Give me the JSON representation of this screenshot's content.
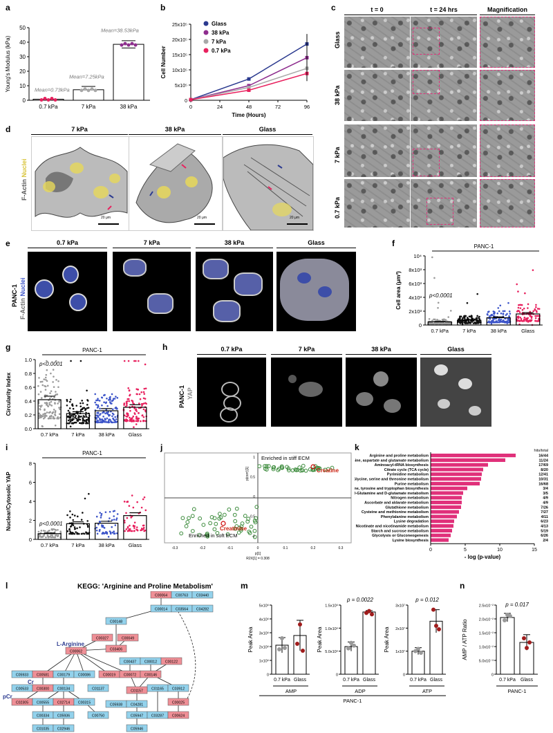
{
  "panel_labels": {
    "a": "a",
    "b": "b",
    "c": "c",
    "d": "d",
    "e": "e",
    "f": "f",
    "g": "g",
    "h": "h",
    "i": "i",
    "j": "j",
    "k": "k",
    "l": "l",
    "m": "m",
    "n": "n"
  },
  "colors": {
    "pink": "#e0307a",
    "navy": "#2b3a8f",
    "purple": "#8e2d8e",
    "grey": "#a8a8a8",
    "blue": "#3d55c9",
    "red": "#e8215e",
    "k_bar": "#e0307a",
    "kegg_blue": "#93d2ec",
    "kegg_red": "#ef8f96"
  },
  "panel_a": {
    "ylabel": "Young's Modulus (kPa)",
    "yticks": [
      "0",
      "10",
      "20",
      "30",
      "40",
      "50"
    ],
    "categories": [
      "0.7 kPa",
      "7 kPa",
      "38 kPa"
    ],
    "annotations": [
      "Mean=0.73kPa",
      "Mean=7.25kPa",
      "Mean=38.53kPa"
    ]
  },
  "panel_b": {
    "ylabel": "Cell Number",
    "xlabel": "Time (Hours)",
    "yticks": [
      "0",
      "5x10⁵",
      "10x10⁵",
      "15x10⁵",
      "20x10⁵",
      "25x10⁵"
    ],
    "xticks": [
      "0",
      "24",
      "48",
      "72",
      "96"
    ],
    "legend": [
      "Glass",
      "38 kPa",
      "7 kPa",
      "0.7 kPa"
    ]
  },
  "panel_c": {
    "col_headers": [
      "t = 0",
      "t = 24 hrs",
      "Magnification"
    ],
    "row_labels": [
      "Glass",
      "38 kPa",
      "7 kPa",
      "0.7 kPa"
    ]
  },
  "panel_d": {
    "col_headers": [
      "7 kPa",
      "38 kPa",
      "Glass"
    ],
    "side_label_1": "F-Actin",
    "side_label_2": "Nuclei",
    "scale": [
      "20 μm",
      "20 μm",
      "20 μm"
    ]
  },
  "panel_e": {
    "col_headers": [
      "0.7 kPa",
      "7 kPa",
      "38 kPa",
      "Glass"
    ],
    "side_label_main": "PANC-1",
    "side_label_1": "F-Actin",
    "side_label_2": "Nuclei"
  },
  "panel_f": {
    "title": "PANC-1",
    "ylabel": "Cell area (μm²)",
    "yticks": [
      "0",
      "2x10³",
      "4x10³",
      "6x10³",
      "8x10³",
      "10⁴"
    ],
    "categories": [
      "0.7 kPa",
      "7 kPa",
      "38 kPa",
      "Glass"
    ],
    "pval": "p<0.0001"
  },
  "panel_g": {
    "title": "PANC-1",
    "ylabel": "Circularity Index",
    "yticks": [
      "0.0",
      "0.2",
      "0.4",
      "0.6",
      "0.8",
      "1.0"
    ],
    "categories": [
      "0.7 kPa",
      "7 kPa",
      "38 kPa",
      "Glass"
    ],
    "pval": "p<0.0001"
  },
  "panel_h": {
    "col_headers": [
      "0.7 kPa",
      "7 kPa",
      "38 kPa",
      "Glass"
    ],
    "side_label_main": "PANC-1",
    "side_label_1": "YAP"
  },
  "panel_i": {
    "title": "PANC-1",
    "ylabel": "Nuclear/Cytosolic YAP",
    "yticks": [
      "0",
      "2",
      "4",
      "6",
      "8"
    ],
    "categories": [
      "0.7 kPa",
      "7 kPa",
      "38 kPa",
      "Glass"
    ],
    "pval": "p<0.0001"
  },
  "panel_j": {
    "top_label": "Enriched in stiff ECM",
    "bottom_label": "Enriched in soft ECM",
    "creatine": "Creatine",
    "creatinine": "Creatinine",
    "ylabel": "p(corr)[1]",
    "xlabel": "p[1]",
    "xlabel2": "R2X[1] = 0.308",
    "xticks": [
      "-0.3",
      "-0.2",
      "-0.1",
      "0",
      "0.1",
      "0.2",
      "0.3"
    ],
    "yticks": [
      "1",
      "0.5",
      "0",
      "-0.5",
      "-1"
    ]
  },
  "panel_k": {
    "hits_header": "hits/total",
    "xlabel": "- log (p-value)",
    "xticks": [
      "0",
      "5",
      "10",
      "15"
    ],
    "pathways": [
      {
        "name": "Arginine and proline metabolism",
        "hits": "16/44",
        "value": 12.3
      },
      {
        "name": "Alanine, aspartate and glutamate metabolism",
        "hits": "11/24",
        "value": 10.8
      },
      {
        "name": "Aminoacyl-tRNA biosynthesis",
        "hits": "17/69",
        "value": 8.3
      },
      {
        "name": "Citrate cycle (TCA cycle)",
        "hits": "8/20",
        "value": 7.6
      },
      {
        "name": "Pyrimidine metabolism",
        "hits": "12/41",
        "value": 7.4
      },
      {
        "name": "Glycine, serine and threonine metabolism",
        "hits": "10/31",
        "value": 7.3
      },
      {
        "name": "Purine metabolism",
        "hits": "16/68",
        "value": 7.1
      },
      {
        "name": "Phenylalanine, tyrosine and tryptophan biosynthesis",
        "hits": "3/4",
        "value": 5.3
      },
      {
        "name": "D-Glutamine and D-glutamate metabolism",
        "hits": "3/5",
        "value": 4.7
      },
      {
        "name": "Nitrogen metabolism",
        "hits": "4/9",
        "value": 4.5
      },
      {
        "name": "Ascorbate and aldarate metabolism",
        "hits": "4/9",
        "value": 4.5
      },
      {
        "name": "Glutathione metabolism",
        "hits": "7/26",
        "value": 4.4
      },
      {
        "name": "Cysteine and methionine metabolism",
        "hits": "7/27",
        "value": 4.1
      },
      {
        "name": "Phenylalanine metabolism",
        "hits": "4/11",
        "value": 3.8
      },
      {
        "name": "Lysine degradation",
        "hits": "6/23",
        "value": 3.4
      },
      {
        "name": "Nicotinate and nicotinamide metabolism",
        "hits": "4/13",
        "value": 3.3
      },
      {
        "name": "Starch and sucrose metabolism",
        "hits": "5/19",
        "value": 3.1
      },
      {
        "name": "Glycolysis or Gluconeogenesis",
        "hits": "6/26",
        "value": 2.9
      },
      {
        "name": "Lysine biosynthesis",
        "hits": "2/4",
        "value": 2.6
      }
    ]
  },
  "panel_l": {
    "title": "KEGG: 'Arginine and Proline Metabolism'",
    "label_arginine": "L-Arginine",
    "label_cr": "Cr",
    "label_pcr": "pCr",
    "nodes": [
      {
        "id": "C00064",
        "c": "red"
      },
      {
        "id": "C00763",
        "c": "blue"
      },
      {
        "id": "C03440",
        "c": "blue"
      },
      {
        "id": "C00014",
        "c": "blue"
      },
      {
        "id": "C03564",
        "c": "blue"
      },
      {
        "id": "C04282",
        "c": "blue"
      },
      {
        "id": "C00148",
        "c": "blue"
      },
      {
        "id": "C00327",
        "c": "red"
      },
      {
        "id": "C00049",
        "c": "red"
      },
      {
        "id": "C03406",
        "c": "red"
      },
      {
        "id": "C00062",
        "c": "red"
      },
      {
        "id": "C00437",
        "c": "blue"
      },
      {
        "id": "C00012",
        "c": "blue"
      },
      {
        "id": "C00122",
        "c": "red"
      },
      {
        "id": "C05933",
        "c": "blue"
      },
      {
        "id": "C00581",
        "c": "red"
      },
      {
        "id": "C00179",
        "c": "blue"
      },
      {
        "id": "C00086",
        "c": "blue"
      },
      {
        "id": "C00019",
        "c": "red"
      },
      {
        "id": "C00072",
        "c": "red"
      },
      {
        "id": "C00146",
        "c": "red"
      },
      {
        "id": "C00533",
        "c": "blue"
      },
      {
        "id": "C00300",
        "c": "red"
      },
      {
        "id": "C00134",
        "c": "blue"
      },
      {
        "id": "C01137",
        "c": "blue"
      },
      {
        "id": "C01165",
        "c": "blue"
      },
      {
        "id": "C03912",
        "c": "blue"
      },
      {
        "id": "C01157",
        "c": "red"
      },
      {
        "id": "C02305",
        "c": "red"
      },
      {
        "id": "C00555",
        "c": "blue"
      },
      {
        "id": "C02714",
        "c": "red"
      },
      {
        "id": "C00315",
        "c": "blue"
      },
      {
        "id": "C05938",
        "c": "blue"
      },
      {
        "id": "C04281",
        "c": "blue"
      },
      {
        "id": "C00025",
        "c": "red"
      },
      {
        "id": "C00334",
        "c": "blue"
      },
      {
        "id": "C05936",
        "c": "blue"
      },
      {
        "id": "C00750",
        "c": "blue"
      },
      {
        "id": "C05947",
        "c": "blue"
      },
      {
        "id": "C03287",
        "c": "blue"
      },
      {
        "id": "C00624",
        "c": "red"
      },
      {
        "id": "C01035",
        "c": "blue"
      },
      {
        "id": "C02946",
        "c": "blue"
      },
      {
        "id": "C05946",
        "c": "blue"
      }
    ]
  },
  "panel_m": {
    "charts": [
      {
        "name": "AMP",
        "ylabel": "Peak Area",
        "yticks": [
          "0",
          "1x10⁶",
          "2x10⁶",
          "3x10⁶",
          "4x10⁶",
          "5x10⁶"
        ],
        "pval": ""
      },
      {
        "name": "ADP",
        "ylabel": "Peak Area",
        "yticks": [
          "0",
          "5.0x10⁶",
          "1.0x10⁶",
          "1.5x10⁶"
        ],
        "pval": "p = 0.0022"
      },
      {
        "name": "ATP",
        "ylabel": "Peak Area",
        "yticks": [
          "0",
          "1x10⁷",
          "2x10⁷",
          "3x10⁷"
        ],
        "pval": "p = 0.012"
      }
    ],
    "categories": [
      "0.7 kPa",
      "Glass"
    ],
    "group": "PANC-1"
  },
  "panel_n": {
    "ylabel": "AMP / ATP Ratio",
    "yticks": [
      "0",
      "5.0x10⁻³",
      "1.0x10⁻²",
      "1.5x10⁻²",
      "2.0x10⁻²",
      "2.5x10⁻²"
    ],
    "categories": [
      "0.7 kPa",
      "Glass"
    ],
    "pval": "p = 0.017",
    "group": "PANC-1"
  },
  "chart_data": [
    {
      "type": "bar",
      "panel": "a",
      "categories": [
        "0.7 kPa",
        "7 kPa",
        "38 kPa"
      ],
      "values": [
        0.73,
        7.25,
        38.53
      ],
      "ylim": [
        0,
        50
      ],
      "ylabel": "Young's Modulus (kPa)"
    },
    {
      "type": "line",
      "panel": "b",
      "x": [
        0,
        48,
        96
      ],
      "xlabel": "Time (Hours)",
      "ylabel": "Cell Number",
      "ylim": [
        0,
        2500000
      ],
      "series": [
        {
          "name": "Glass",
          "values": [
            20000,
            700000,
            1850000
          ]
        },
        {
          "name": "38 kPa",
          "values": [
            20000,
            480000,
            1400000
          ]
        },
        {
          "name": "7 kPa",
          "values": [
            20000,
            420000,
            1050000
          ]
        },
        {
          "name": "0.7 kPa",
          "values": [
            20000,
            330000,
            880000
          ]
        }
      ]
    },
    {
      "type": "scatter",
      "panel": "f",
      "categories": [
        "0.7 kPa",
        "7 kPa",
        "38 kPa",
        "Glass"
      ],
      "values": [
        450,
        700,
        1050,
        1600
      ],
      "ylim": [
        0,
        10000
      ]
    },
    {
      "type": "scatter",
      "panel": "g",
      "categories": [
        "0.7 kPa",
        "7 kPa",
        "38 kPa",
        "Glass"
      ],
      "values": [
        0.42,
        0.22,
        0.26,
        0.31
      ],
      "ylim": [
        0,
        1.0
      ]
    },
    {
      "type": "scatter",
      "panel": "i",
      "categories": [
        "0.7 kPa",
        "7 kPa",
        "38 kPa",
        "Glass"
      ],
      "values": [
        0.6,
        1.65,
        1.7,
        2.5
      ],
      "ylim": [
        0,
        8
      ]
    },
    {
      "type": "bar",
      "panel": "k",
      "orientation": "horizontal",
      "xlabel": "- log (p-value)",
      "xlim": [
        0,
        15
      ]
    },
    {
      "type": "bar",
      "panel": "m-AMP",
      "categories": [
        "0.7 kPa",
        "Glass"
      ],
      "values": [
        2100000,
        2800000
      ],
      "ylim": [
        0,
        5000000
      ]
    },
    {
      "type": "bar",
      "panel": "m-ADP",
      "categories": [
        "0.7 kPa",
        "Glass"
      ],
      "values": [
        600000,
        1350000
      ],
      "ylim": [
        0,
        1500000
      ]
    },
    {
      "type": "bar",
      "panel": "m-ATP",
      "categories": [
        "0.7 kPa",
        "Glass"
      ],
      "values": [
        10000000,
        23000000
      ],
      "ylim": [
        0,
        30000000
      ]
    },
    {
      "type": "bar",
      "panel": "n",
      "categories": [
        "0.7 kPa",
        "Glass"
      ],
      "values": [
        0.0205,
        0.0115
      ],
      "ylim": [
        0,
        0.025
      ]
    }
  ]
}
